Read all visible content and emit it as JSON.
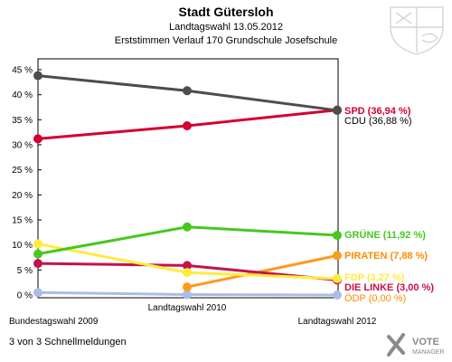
{
  "header": {
    "title": "Stadt Gütersloh",
    "subtitle": "Landtagswahl 13.05.2012",
    "subtitle2": "Erststimmen Verlauf 170 Grundschule Josefschule"
  },
  "footer": {
    "note": "3 von 3 Schnellmeldungen",
    "brand_top": "VOTE",
    "brand_bottom": "MANAGER"
  },
  "chart_data": {
    "type": "line",
    "title": "Stadt Gütersloh",
    "categories": [
      "Bundestagswahl 2009",
      "Landtagswahl 2010",
      "Landtagswahl 2012"
    ],
    "y_ticks": [
      "0 %",
      "5 %",
      "10 %",
      "15 %",
      "20 %",
      "25 %",
      "30 %",
      "35 %",
      "40 %",
      "45 %"
    ],
    "ylim": [
      0,
      47
    ],
    "grid": false,
    "series": [
      {
        "name": "CDU",
        "label": "CDU (36,88 %)",
        "color": "#4d4d4d",
        "label_color": "#000000",
        "values": [
          43.8,
          40.8,
          36.88
        ]
      },
      {
        "name": "SPD",
        "label": "SPD (36,94 %)",
        "color": "#d4002f",
        "label_color": "#d4002f",
        "values": [
          31.2,
          33.8,
          36.94
        ]
      },
      {
        "name": "GRÜNE",
        "label": "GRÜNE (11,92 %)",
        "color": "#46c81e",
        "label_color": "#46c81e",
        "values": [
          8.2,
          13.6,
          11.92
        ]
      },
      {
        "name": "FDP",
        "label": "FDP (3,27 %)",
        "color": "#ffec3c",
        "label_color": "#ffec3c",
        "values": [
          10.2,
          4.5,
          3.27
        ]
      },
      {
        "name": "DIE LINKE",
        "label": "DIE LINKE (3,00 %)",
        "color": "#c4114c",
        "label_color": "#c4114c",
        "values": [
          6.3,
          5.9,
          3.0
        ]
      },
      {
        "name": "PIRATEN",
        "label": "PIRATEN (7,88 %)",
        "color": "#ff9a1e",
        "label_color": "#ff8c00",
        "values": [
          null,
          1.6,
          7.88
        ]
      },
      {
        "name": "ÖDP",
        "label": "ÖDP (0,00 %)",
        "color": "#a9bde6",
        "label_color": "#ff8c00",
        "values": [
          0.5,
          0.1,
          0.0
        ]
      }
    ]
  }
}
